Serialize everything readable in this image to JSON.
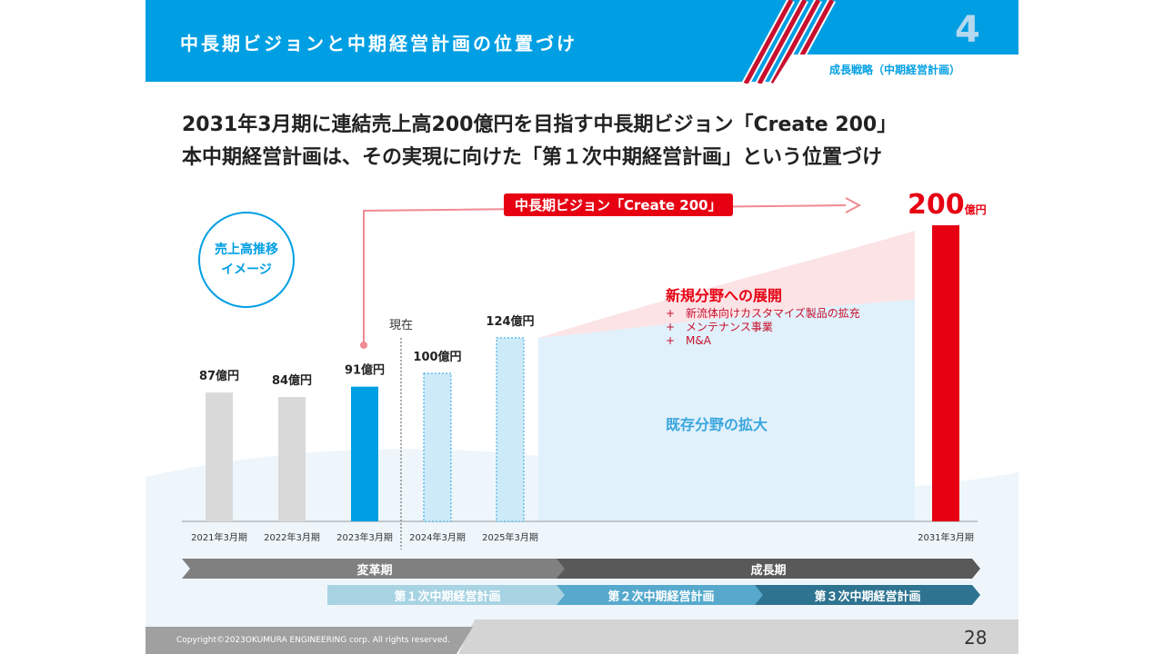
{
  "header": {
    "title": "中長期ビジョンと中期経営計画の位置づけ",
    "section_number": "4",
    "section_label": "成長戦略（中期経営計画）"
  },
  "headline": [
    "2031年3月期に連結売上高200億円を目指す中長期ビジョン「Create 200」",
    "本中期経営計画は、その実現に向けた「第１次中期経営計画」という位置づけ"
  ],
  "badge": "売上高推移\nイメージ",
  "vision_label": "中長期ビジョン「Create 200」",
  "goal": {
    "value": "200",
    "unit": "億円"
  },
  "now_label": "現在",
  "new_field": {
    "title": "新規分野への展開",
    "items": [
      "+　新流体向けカスタマイズ製品の拡充",
      "+　メンテナンス事業",
      "+　M&A"
    ]
  },
  "existing_field": "既存分野の拡大",
  "chart_data": {
    "type": "bar",
    "categories": [
      "2021年3月期",
      "2022年3月期",
      "2023年3月期",
      "2024年3月期",
      "2025年3月期",
      "2031年3月期"
    ],
    "values": [
      87,
      84,
      91,
      100,
      124,
      200
    ],
    "labels": [
      "87億円",
      "84億円",
      "91億円",
      "100億円",
      "124億円",
      "200億円"
    ],
    "status": [
      "actual",
      "actual",
      "actual",
      "plan",
      "plan",
      "target"
    ],
    "unit": "億円",
    "ylim": [
      0,
      200
    ]
  },
  "phases": {
    "top": [
      "変革期",
      "成長期"
    ],
    "plans": [
      "第１次中期経営計画",
      "第２次中期経営計画",
      "第３次中期経営計画"
    ]
  },
  "footer": {
    "copyright": "Copyright©2023OKUMURA ENGINEERING corp. All rights reserved.",
    "page": "28"
  },
  "colors": {
    "brand": "#009fe3",
    "accent": "#e60012"
  }
}
